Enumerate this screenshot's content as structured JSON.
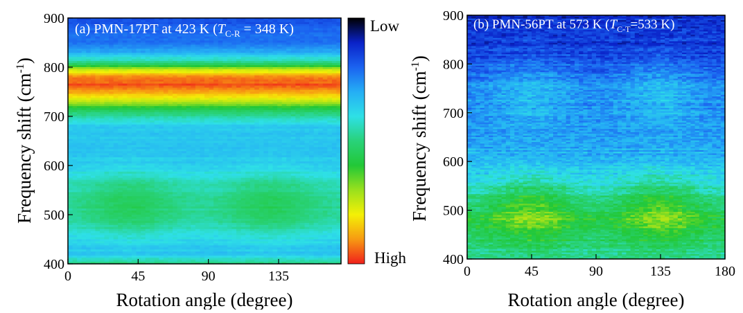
{
  "chart_data": [
    {
      "type": "heatmap",
      "panel": "a",
      "title_parts": {
        "label": "(a) PMN-17PT at 423 K (",
        "italic": "T",
        "sub": "C-R",
        "tail": " = 348 K)"
      },
      "xlabel": "Rotation angle (degree)",
      "ylabel": "Frequency shift (cm",
      "ylabel_sup": "-1",
      "ylabel_close": ")",
      "xlim": [
        0,
        175
      ],
      "ylim": [
        400,
        900
      ],
      "xticks": [
        0,
        45,
        90,
        135
      ],
      "yticks": [
        400,
        500,
        600,
        700,
        800,
        900
      ],
      "intensity_profile": [
        {
          "y": 400,
          "v": 0.5
        },
        {
          "y": 420,
          "v": 0.34
        },
        {
          "y": 440,
          "v": 0.36
        },
        {
          "y": 480,
          "v": 0.44
        },
        {
          "y": 520,
          "v": 0.47
        },
        {
          "y": 560,
          "v": 0.44
        },
        {
          "y": 600,
          "v": 0.36
        },
        {
          "y": 640,
          "v": 0.33
        },
        {
          "y": 680,
          "v": 0.36
        },
        {
          "y": 710,
          "v": 0.52
        },
        {
          "y": 730,
          "v": 0.74
        },
        {
          "y": 750,
          "v": 0.9
        },
        {
          "y": 765,
          "v": 0.96
        },
        {
          "y": 780,
          "v": 0.92
        },
        {
          "y": 795,
          "v": 0.74
        },
        {
          "y": 810,
          "v": 0.48
        },
        {
          "y": 830,
          "v": 0.3
        },
        {
          "y": 850,
          "v": 0.22
        },
        {
          "y": 870,
          "v": 0.2
        },
        {
          "y": 900,
          "v": 0.18
        }
      ],
      "angular_lobes": [
        {
          "x": 40,
          "y": 520,
          "amp": 0.08
        },
        {
          "x": 130,
          "y": 520,
          "amp": 0.08
        }
      ]
    },
    {
      "type": "heatmap",
      "panel": "b",
      "title_parts": {
        "label": "(b) PMN-56PT at 573 K (",
        "italic": "T",
        "sub": "C-T",
        "tail": "=533 K)"
      },
      "xlabel": "Rotation angle (degree)",
      "ylabel": "Frequency shift (cm",
      "ylabel_sup": "-1",
      "ylabel_close": ")",
      "xlim": [
        0,
        180
      ],
      "ylim": [
        400,
        900
      ],
      "xticks": [
        0,
        45,
        90,
        135,
        180
      ],
      "yticks": [
        400,
        500,
        600,
        700,
        800,
        900
      ],
      "intensity_profile": [
        {
          "y": 400,
          "v": 0.45
        },
        {
          "y": 440,
          "v": 0.52
        },
        {
          "y": 480,
          "v": 0.56
        },
        {
          "y": 520,
          "v": 0.48
        },
        {
          "y": 560,
          "v": 0.38
        },
        {
          "y": 600,
          "v": 0.32
        },
        {
          "y": 650,
          "v": 0.28
        },
        {
          "y": 700,
          "v": 0.26
        },
        {
          "y": 750,
          "v": 0.24
        },
        {
          "y": 800,
          "v": 0.18
        },
        {
          "y": 850,
          "v": 0.13
        },
        {
          "y": 900,
          "v": 0.11
        }
      ],
      "angular_lobes": [
        {
          "x": 45,
          "y": 500,
          "amp": 0.14
        },
        {
          "x": 135,
          "y": 500,
          "amp": 0.14
        },
        {
          "x": 45,
          "y": 740,
          "amp": 0.08
        },
        {
          "x": 135,
          "y": 740,
          "amp": 0.08
        }
      ]
    }
  ],
  "colorbar": {
    "low_label": "Low",
    "high_label": "High",
    "stops": [
      "#000000",
      "#0a22c8",
      "#1b63f0",
      "#25aef5",
      "#2ee0e6",
      "#29d27a",
      "#22c837",
      "#9ae01d",
      "#f4f006",
      "#f79a12",
      "#f0201c"
    ]
  }
}
